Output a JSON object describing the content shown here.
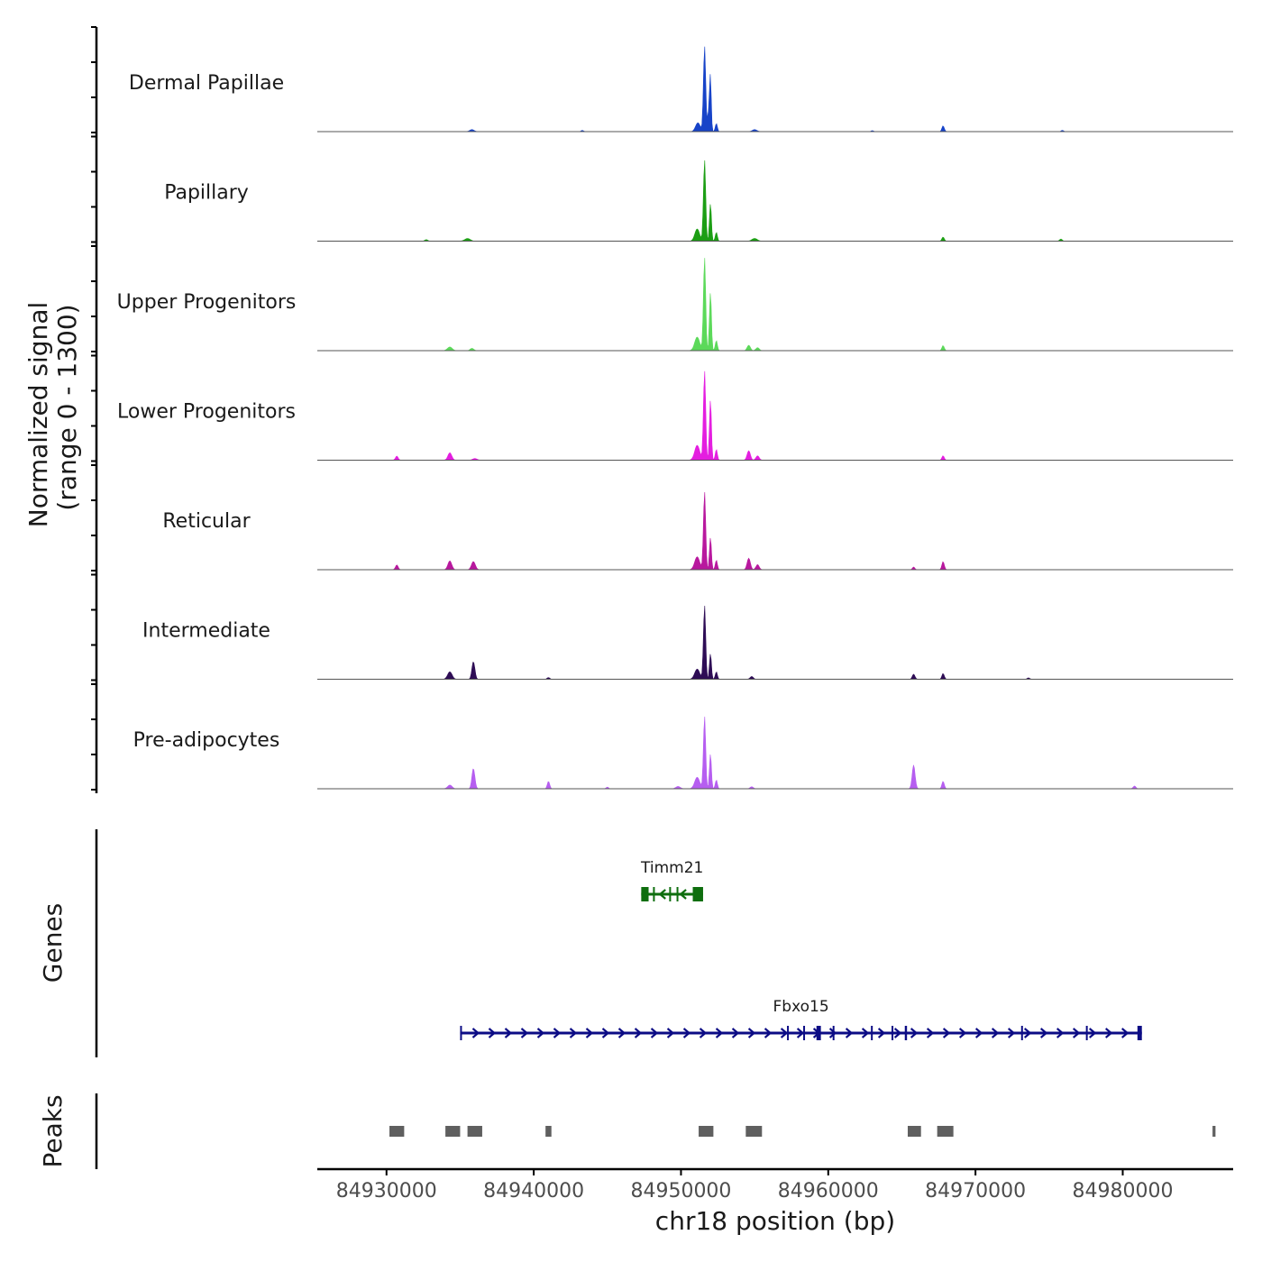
{
  "chart_data": {
    "type": "area",
    "title": "",
    "region": "chr18",
    "xlabel": "chr18 position (bp)",
    "ylabel_line1": "Normalized signal",
    "ylabel_line2": "(range 0 - 1300)",
    "ylim": [
      0,
      1300
    ],
    "xlim": [
      84925300,
      84987500
    ],
    "x_ticks": [
      84930000,
      84940000,
      84950000,
      84960000,
      84970000,
      84980000
    ],
    "x_tick_labels": [
      "84930000",
      "84940000",
      "84950000",
      "84960000",
      "84970000",
      "84980000"
    ],
    "tracks": [
      {
        "name": "Dermal Papillae",
        "color": "#1743c8",
        "peaks": [
          [
            84951600,
            1260,
            75
          ],
          [
            84952000,
            680,
            55
          ],
          [
            84951150,
            130,
            160
          ],
          [
            84951900,
            300,
            90
          ],
          [
            84952400,
            120,
            70
          ],
          [
            84935800,
            30,
            150
          ],
          [
            84955000,
            30,
            150
          ],
          [
            84967800,
            85,
            80
          ],
          [
            84943300,
            18,
            80
          ],
          [
            84963000,
            15,
            80
          ],
          [
            84975900,
            18,
            80
          ]
        ]
      },
      {
        "name": "Papillary",
        "color": "#1c9e14",
        "peaks": [
          [
            84951600,
            1200,
            75
          ],
          [
            84952000,
            560,
            65
          ],
          [
            84951100,
            180,
            160
          ],
          [
            84952400,
            130,
            70
          ],
          [
            84932700,
            22,
            100
          ],
          [
            84935500,
            40,
            180
          ],
          [
            84955000,
            40,
            180
          ],
          [
            84967800,
            60,
            80
          ],
          [
            84975800,
            30,
            90
          ]
        ]
      },
      {
        "name": "Upper Progenitors",
        "color": "#5cd95a",
        "peaks": [
          [
            84951600,
            1380,
            75
          ],
          [
            84952000,
            870,
            65
          ],
          [
            84951100,
            200,
            170
          ],
          [
            84952400,
            150,
            70
          ],
          [
            84934300,
            55,
            160
          ],
          [
            84935800,
            35,
            120
          ],
          [
            84954600,
            80,
            110
          ],
          [
            84955200,
            45,
            110
          ],
          [
            84967800,
            75,
            80
          ]
        ]
      },
      {
        "name": "Lower Progenitors",
        "color": "#e41ee0",
        "peaks": [
          [
            84951600,
            1320,
            75
          ],
          [
            84952000,
            900,
            65
          ],
          [
            84951100,
            220,
            170
          ],
          [
            84952400,
            160,
            70
          ],
          [
            84930700,
            60,
            90
          ],
          [
            84934300,
            110,
            130
          ],
          [
            84936000,
            25,
            150
          ],
          [
            84954600,
            140,
            110
          ],
          [
            84955200,
            65,
            110
          ],
          [
            84967800,
            65,
            80
          ]
        ]
      },
      {
        "name": "Reticular",
        "color": "#b8189e",
        "peaks": [
          [
            84951600,
            1150,
            75
          ],
          [
            84952000,
            480,
            65
          ],
          [
            84951100,
            190,
            170
          ],
          [
            84952400,
            140,
            70
          ],
          [
            84930700,
            70,
            90
          ],
          [
            84934300,
            130,
            130
          ],
          [
            84935900,
            120,
            130
          ],
          [
            84954600,
            170,
            110
          ],
          [
            84955200,
            75,
            110
          ],
          [
            84965800,
            40,
            80
          ],
          [
            84967800,
            120,
            80
          ]
        ]
      },
      {
        "name": "Intermediate",
        "color": "#2e0d55",
        "peaks": [
          [
            84951600,
            1090,
            75
          ],
          [
            84952000,
            380,
            65
          ],
          [
            84951100,
            150,
            170
          ],
          [
            84952400,
            110,
            70
          ],
          [
            84934300,
            110,
            150
          ],
          [
            84935900,
            260,
            100
          ],
          [
            84941000,
            25,
            90
          ],
          [
            84954800,
            40,
            110
          ],
          [
            84965800,
            75,
            90
          ],
          [
            84967800,
            85,
            80
          ],
          [
            84973600,
            20,
            90
          ]
        ]
      },
      {
        "name": "Pre-adipocytes",
        "color": "#b65ef0",
        "peaks": [
          [
            84951600,
            1070,
            75
          ],
          [
            84952000,
            520,
            65
          ],
          [
            84951100,
            170,
            170
          ],
          [
            84952400,
            130,
            70
          ],
          [
            84949800,
            35,
            150
          ],
          [
            84934300,
            55,
            150
          ],
          [
            84935900,
            300,
            100
          ],
          [
            84941000,
            110,
            80
          ],
          [
            84945000,
            25,
            80
          ],
          [
            84954800,
            30,
            110
          ],
          [
            84965800,
            350,
            100
          ],
          [
            84967800,
            110,
            80
          ],
          [
            84980800,
            40,
            90
          ]
        ]
      }
    ],
    "genes": [
      {
        "name": "Timm21",
        "color": "#0e6e0e",
        "start": 84947300,
        "end": 84951500,
        "strand": "-",
        "exons": [
          [
            84947300,
            84947800
          ],
          [
            84948100,
            84948200
          ],
          [
            84949200,
            84949300
          ],
          [
            84949700,
            84949800
          ],
          [
            84950800,
            84951500
          ]
        ]
      },
      {
        "name": "Fbxo15",
        "color": "#0c0c85",
        "start": 84935000,
        "end": 84981300,
        "strand": "+",
        "exons": [
          [
            84935000,
            84935080
          ],
          [
            84957200,
            84957280
          ],
          [
            84958300,
            84958380
          ],
          [
            84959200,
            84959500
          ],
          [
            84960300,
            84960400
          ],
          [
            84962900,
            84963000
          ],
          [
            84964300,
            84964380
          ],
          [
            84965200,
            84965350
          ],
          [
            84973100,
            84973200
          ],
          [
            84977500,
            84977560
          ],
          [
            84981000,
            84981300
          ]
        ]
      }
    ],
    "peaks": [
      [
        84930200,
        84931200
      ],
      [
        84934000,
        84935000
      ],
      [
        84935500,
        84936500
      ],
      [
        84940800,
        84941200
      ],
      [
        84951200,
        84952200
      ],
      [
        84954400,
        84955500
      ],
      [
        84965400,
        84966300
      ],
      [
        84967400,
        84968500
      ],
      [
        84986100,
        84986300
      ]
    ],
    "side_labels": {
      "genes": "Genes",
      "peaks": "Peaks"
    },
    "colors": {
      "axis": "#000000",
      "baseline": "#555555",
      "peak_region": "#5f5f5f"
    }
  }
}
